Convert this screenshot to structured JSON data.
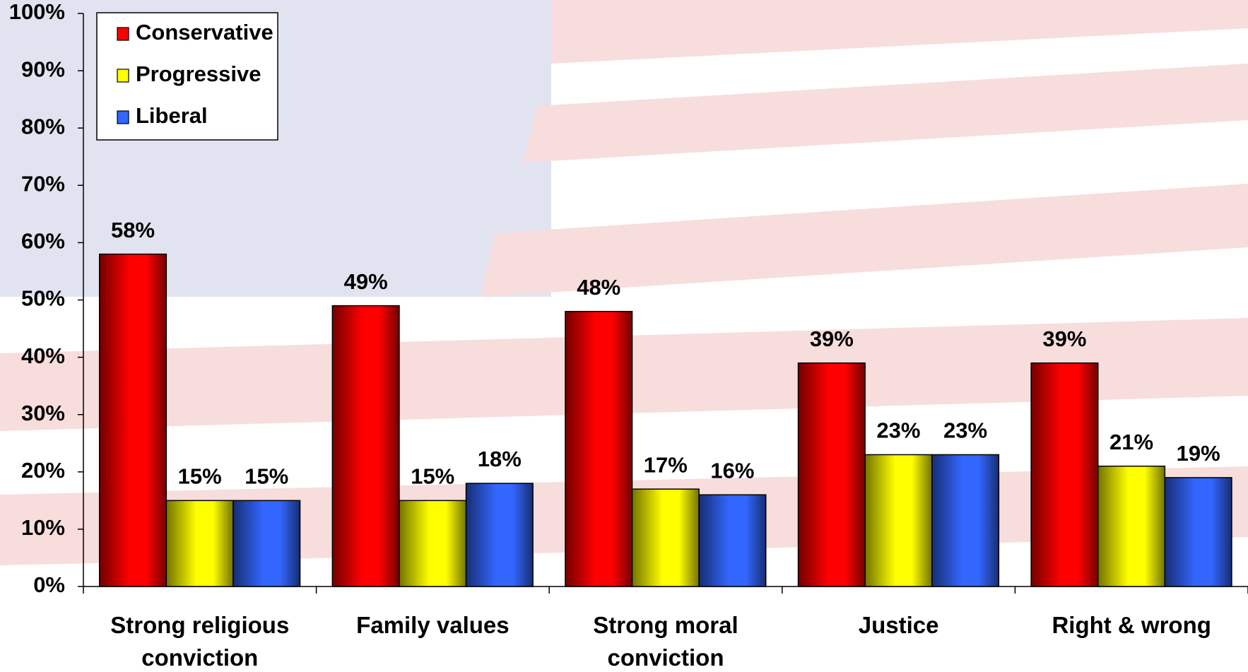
{
  "chart_data": {
    "type": "bar",
    "categories": [
      "Strong religious conviction",
      "Family values",
      "Strong moral conviction",
      "Justice",
      "Right & wrong"
    ],
    "series": [
      {
        "name": "Conservative",
        "color": "#ff0000",
        "values": [
          58,
          49,
          48,
          39,
          39
        ],
        "value_labels": [
          "58%",
          "49%",
          "48%",
          "39%",
          "39%"
        ]
      },
      {
        "name": "Progressive",
        "color": "#ffff00",
        "values": [
          15,
          15,
          17,
          23,
          21
        ],
        "value_labels": [
          "15%",
          "15%",
          "17%",
          "23%",
          "21%"
        ]
      },
      {
        "name": "Liberal",
        "color": "#3366ff",
        "values": [
          15,
          18,
          16,
          23,
          19
        ],
        "value_labels": [
          "15%",
          "18%",
          "16%",
          "23%",
          "19%"
        ]
      }
    ],
    "ylim": [
      0,
      100
    ],
    "yticks": [
      {
        "value": 0,
        "label": "0%"
      },
      {
        "value": 10,
        "label": "10%"
      },
      {
        "value": 20,
        "label": "20%"
      },
      {
        "value": 30,
        "label": "30%"
      },
      {
        "value": 40,
        "label": "40%"
      },
      {
        "value": 50,
        "label": "50%"
      },
      {
        "value": 60,
        "label": "60%"
      },
      {
        "value": 70,
        "label": "70%"
      },
      {
        "value": 80,
        "label": "80%"
      },
      {
        "value": 90,
        "label": "90%"
      },
      {
        "value": 100,
        "label": "100%"
      }
    ],
    "legend": "top-left"
  }
}
